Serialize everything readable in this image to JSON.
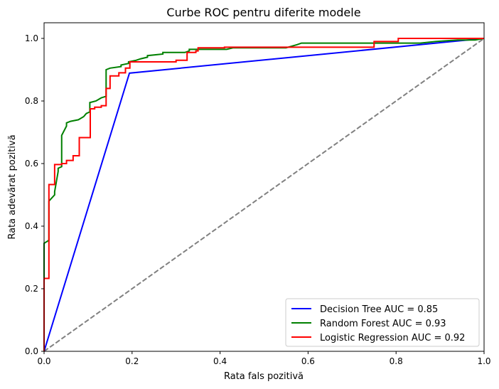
{
  "chart_data": {
    "type": "line",
    "title": "Curbe ROC pentru diferite modele",
    "xlabel": "Rata fals pozitivă",
    "ylabel": "Rata adevărat pozitivă",
    "xlim": [
      0.0,
      1.0
    ],
    "ylim": [
      0.0,
      1.05
    ],
    "xticks": [
      "0.0",
      "0.2",
      "0.4",
      "0.6",
      "0.8",
      "1.0"
    ],
    "yticks": [
      "0.0",
      "0.2",
      "0.4",
      "0.6",
      "0.8",
      "1.0"
    ],
    "grid": false,
    "legend_position": "lower-right",
    "baseline": {
      "color": "#808080",
      "style": "dashed",
      "x": [
        0.0,
        1.0
      ],
      "y": [
        0.0,
        1.0
      ]
    },
    "series": [
      {
        "name": "Decision Tree AUC = 0.85",
        "color": "#0000ff",
        "x": [
          0.0,
          0.194,
          1.0
        ],
        "y": [
          0.0,
          0.889,
          1.0
        ]
      },
      {
        "name": "Random Forest AUC = 0.93",
        "color": "#008000",
        "x": [
          0.0,
          0.0,
          0.011,
          0.011,
          0.024,
          0.024,
          0.032,
          0.032,
          0.04,
          0.04,
          0.051,
          0.051,
          0.06,
          0.078,
          0.09,
          0.096,
          0.104,
          0.104,
          0.118,
          0.13,
          0.141,
          0.141,
          0.15,
          0.175,
          0.175,
          0.192,
          0.192,
          0.209,
          0.22,
          0.235,
          0.235,
          0.27,
          0.27,
          0.32,
          0.33,
          0.33,
          0.36,
          0.415,
          0.43,
          0.55,
          0.575,
          0.585,
          0.8,
          0.855,
          0.89,
          0.94,
          0.98,
          1.0
        ],
        "y": [
          0.0,
          0.345,
          0.355,
          0.48,
          0.5,
          0.51,
          0.575,
          0.585,
          0.59,
          0.69,
          0.72,
          0.73,
          0.735,
          0.74,
          0.75,
          0.76,
          0.765,
          0.795,
          0.8,
          0.81,
          0.815,
          0.9,
          0.905,
          0.91,
          0.915,
          0.92,
          0.925,
          0.93,
          0.935,
          0.94,
          0.945,
          0.95,
          0.955,
          0.955,
          0.96,
          0.965,
          0.965,
          0.965,
          0.97,
          0.97,
          0.98,
          0.985,
          0.985,
          0.985,
          0.99,
          0.995,
          0.995,
          1.0
        ]
      },
      {
        "name": "Logistic Regression AUC = 0.92",
        "color": "#ff0000",
        "x": [
          0.0,
          0.0,
          0.011,
          0.011,
          0.024,
          0.024,
          0.04,
          0.04,
          0.051,
          0.051,
          0.066,
          0.066,
          0.08,
          0.08,
          0.105,
          0.105,
          0.115,
          0.115,
          0.13,
          0.13,
          0.141,
          0.141,
          0.15,
          0.15,
          0.17,
          0.17,
          0.185,
          0.185,
          0.195,
          0.195,
          0.3,
          0.3,
          0.325,
          0.325,
          0.345,
          0.345,
          0.35,
          0.35,
          0.41,
          0.41,
          0.75,
          0.75,
          0.805,
          0.805,
          0.95,
          0.95,
          1.0
        ],
        "y": [
          0.0,
          0.233,
          0.233,
          0.533,
          0.533,
          0.597,
          0.597,
          0.6,
          0.6,
          0.61,
          0.61,
          0.625,
          0.625,
          0.683,
          0.683,
          0.775,
          0.775,
          0.78,
          0.78,
          0.785,
          0.785,
          0.84,
          0.84,
          0.88,
          0.88,
          0.89,
          0.89,
          0.905,
          0.905,
          0.925,
          0.925,
          0.93,
          0.93,
          0.955,
          0.955,
          0.96,
          0.96,
          0.97,
          0.97,
          0.972,
          0.972,
          0.99,
          0.99,
          1.0,
          1.0,
          1.0,
          1.0
        ]
      }
    ]
  }
}
